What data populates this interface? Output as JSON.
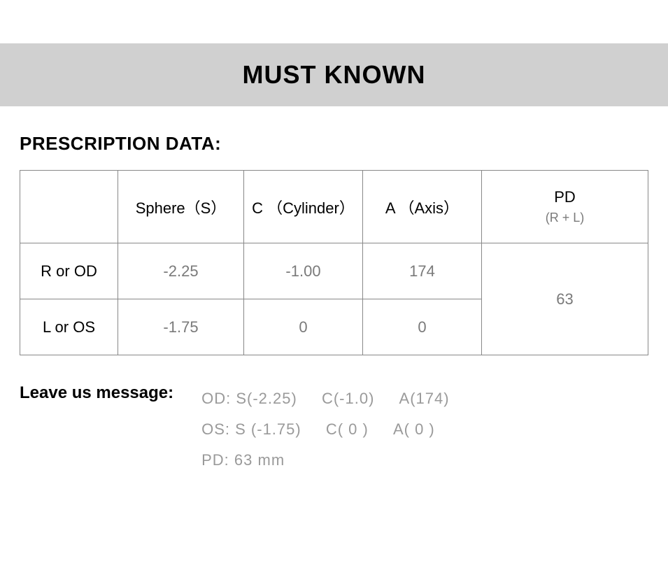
{
  "banner": {
    "title": "MUST KNOWN"
  },
  "section": {
    "title": "PRESCRIPTION DATA:"
  },
  "table": {
    "columns": {
      "blank": "",
      "sphere": "Sphere（S）",
      "cylinder": "C （Cylinder）",
      "axis": "A （Axis）",
      "pd_main": "PD",
      "pd_sub": "(R + L)"
    },
    "rows": [
      {
        "label": "R or OD",
        "sphere": "-2.25",
        "cylinder": "-1.00",
        "axis": "174"
      },
      {
        "label": "L or OS",
        "sphere": "-1.75",
        "cylinder": "0",
        "axis": "0"
      }
    ],
    "pd_value": "63",
    "border_color": "#888888",
    "header_text_color": "#000000",
    "value_text_color": "#7a7a7a",
    "header_fontsize": 22,
    "value_fontsize": 22
  },
  "message": {
    "label": "Leave us message:",
    "lines": [
      [
        "OD:  S(-2.25)",
        "C(-1.0)",
        "A(174)"
      ],
      [
        "OS:  S (-1.75)",
        "C( 0 )",
        "A( 0 )"
      ],
      [
        "PD:  63 mm"
      ]
    ],
    "text_color": "#9a9a9a",
    "fontsize": 22
  },
  "colors": {
    "banner_bg": "#d0d0d0",
    "page_bg": "#ffffff"
  }
}
